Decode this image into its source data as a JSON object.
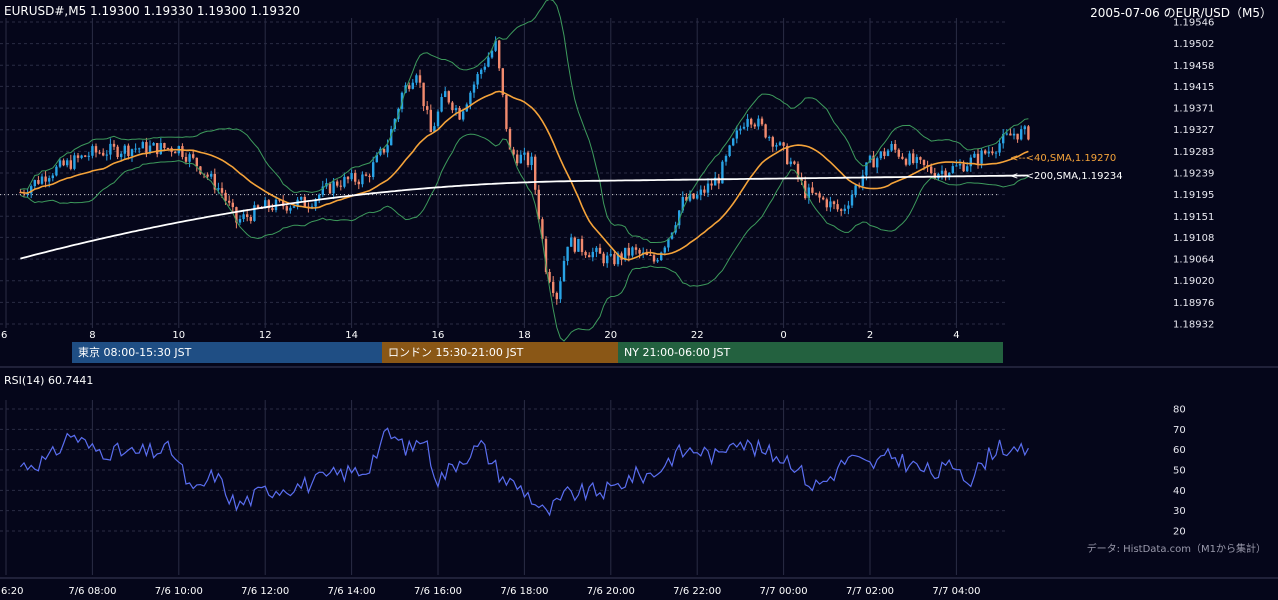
{
  "header": {
    "symbol_info": "EURUSD#,M5 1.19300 1.19330 1.19300 1.19320",
    "chart_title": "2005-07-06 のEUR/USD（M5）"
  },
  "sessions": [
    {
      "label": "東京 08:00-15:30 JST",
      "color": "#1f4e84"
    },
    {
      "label": "ロンドン 15:30-21:00 JST",
      "color": "#8a5716"
    },
    {
      "label": "NY 21:00-06:00 JST",
      "color": "#23613f"
    }
  ],
  "ma_labels": {
    "sma40": "<--<40,SMA,1.19270",
    "sma200": "<--<200,SMA,1.19234"
  },
  "rsi_title": "RSI(14) 60.7441",
  "source_note": "データ: HistData.com（M1から集計）",
  "colors": {
    "background": "#05061a",
    "candle_up": "#29a3e6",
    "candle_down": "#f28a6e",
    "sma40": "#f5a33a",
    "sma200": "#ffffff",
    "bollinger": "#3d9a5c",
    "rsi": "#5a6ef0",
    "grid": "#2a2c44"
  },
  "chart_data": [
    {
      "type": "candlestick",
      "ylim": [
        1.18932,
        1.19546
      ],
      "y_ticks": [
        "1.19546",
        "1.19502",
        "1.19458",
        "1.19415",
        "1.19371",
        "1.19327",
        "1.19283",
        "1.19239",
        "1.19195",
        "1.19151",
        "1.19108",
        "1.19064",
        "1.19020",
        "1.18976",
        "1.18932"
      ],
      "x_ticks_hours": [
        "6",
        "8",
        "10",
        "12",
        "14",
        "16",
        "18",
        "20",
        "22",
        "0",
        "2",
        "4"
      ],
      "reference_line": 1.19195,
      "sma40_last": 1.1927,
      "sma200_last": 1.19234,
      "anchors": [
        {
          "t": "06:20",
          "close": 1.192
        },
        {
          "t": "07:00",
          "close": 1.1924
        },
        {
          "t": "07:30",
          "close": 1.1926
        },
        {
          "t": "08:00",
          "close": 1.1928
        },
        {
          "t": "09:00",
          "close": 1.1929
        },
        {
          "t": "10:00",
          "close": 1.1929
        },
        {
          "t": "10:30",
          "close": 1.1925
        },
        {
          "t": "11:00",
          "close": 1.192
        },
        {
          "t": "11:20",
          "close": 1.1914
        },
        {
          "t": "12:00",
          "close": 1.1917
        },
        {
          "t": "13:00",
          "close": 1.1918
        },
        {
          "t": "13:40",
          "close": 1.1922
        },
        {
          "t": "14:20",
          "close": 1.1923
        },
        {
          "t": "14:50",
          "close": 1.193
        },
        {
          "t": "15:10",
          "close": 1.194
        },
        {
          "t": "15:30",
          "close": 1.1945
        },
        {
          "t": "15:50",
          "close": 1.1932
        },
        {
          "t": "16:10",
          "close": 1.194
        },
        {
          "t": "16:30",
          "close": 1.1936
        },
        {
          "t": "17:00",
          "close": 1.1945
        },
        {
          "t": "17:20",
          "close": 1.195
        },
        {
          "t": "17:40",
          "close": 1.1928
        },
        {
          "t": "18:10",
          "close": 1.1926
        },
        {
          "t": "18:30",
          "close": 1.1905
        },
        {
          "t": "18:45",
          "close": 1.1899
        },
        {
          "t": "19:00",
          "close": 1.191
        },
        {
          "t": "19:30",
          "close": 1.1908
        },
        {
          "t": "20:00",
          "close": 1.1906
        },
        {
          "t": "20:30",
          "close": 1.1908
        },
        {
          "t": "21:00",
          "close": 1.1906
        },
        {
          "t": "21:20",
          "close": 1.1911
        },
        {
          "t": "21:40",
          "close": 1.1918
        },
        {
          "t": "22:00",
          "close": 1.1919
        },
        {
          "t": "22:30",
          "close": 1.1923
        },
        {
          "t": "22:50",
          "close": 1.193
        },
        {
          "t": "23:10",
          "close": 1.1936
        },
        {
          "t": "23:30",
          "close": 1.1933
        },
        {
          "t": "23:50",
          "close": 1.193
        },
        {
          "t": "00:10",
          "close": 1.1926
        },
        {
          "t": "00:30",
          "close": 1.192
        },
        {
          "t": "01:00",
          "close": 1.1918
        },
        {
          "t": "01:20",
          "close": 1.1916
        },
        {
          "t": "01:40",
          "close": 1.1921
        },
        {
          "t": "02:00",
          "close": 1.1926
        },
        {
          "t": "02:30",
          "close": 1.1929
        },
        {
          "t": "03:00",
          "close": 1.1926
        },
        {
          "t": "03:30",
          "close": 1.1924
        },
        {
          "t": "04:00",
          "close": 1.1925
        },
        {
          "t": "04:30",
          "close": 1.1927
        },
        {
          "t": "05:00",
          "close": 1.193
        },
        {
          "t": "05:20",
          "close": 1.1932
        },
        {
          "t": "05:40",
          "close": 1.1932
        }
      ]
    },
    {
      "type": "line",
      "name": "RSI(14)",
      "ylim": [
        20,
        80
      ],
      "y_ticks": [
        "80",
        "70",
        "60",
        "50",
        "40",
        "30",
        "20"
      ],
      "last_value": 60.7441,
      "anchors": [
        {
          "t": "06:20",
          "value": 52
        },
        {
          "t": "07:00",
          "value": 55
        },
        {
          "t": "07:30",
          "value": 68
        },
        {
          "t": "08:00",
          "value": 60
        },
        {
          "t": "09:00",
          "value": 58
        },
        {
          "t": "09:50",
          "value": 60
        },
        {
          "t": "10:20",
          "value": 38
        },
        {
          "t": "10:50",
          "value": 48
        },
        {
          "t": "11:20",
          "value": 32
        },
        {
          "t": "12:00",
          "value": 40
        },
        {
          "t": "13:00",
          "value": 43
        },
        {
          "t": "13:40",
          "value": 48
        },
        {
          "t": "14:20",
          "value": 50
        },
        {
          "t": "14:50",
          "value": 68
        },
        {
          "t": "15:20",
          "value": 60
        },
        {
          "t": "15:40",
          "value": 66
        },
        {
          "t": "16:00",
          "value": 45
        },
        {
          "t": "16:30",
          "value": 55
        },
        {
          "t": "17:00",
          "value": 62
        },
        {
          "t": "17:30",
          "value": 46
        },
        {
          "t": "18:00",
          "value": 40
        },
        {
          "t": "18:30",
          "value": 28
        },
        {
          "t": "19:00",
          "value": 38
        },
        {
          "t": "19:30",
          "value": 39
        },
        {
          "t": "20:00",
          "value": 40
        },
        {
          "t": "20:30",
          "value": 47
        },
        {
          "t": "21:00",
          "value": 48
        },
        {
          "t": "21:30",
          "value": 58
        },
        {
          "t": "22:00",
          "value": 60
        },
        {
          "t": "22:30",
          "value": 56
        },
        {
          "t": "22:50",
          "value": 67
        },
        {
          "t": "23:10",
          "value": 62
        },
        {
          "t": "23:40",
          "value": 58
        },
        {
          "t": "00:10",
          "value": 55
        },
        {
          "t": "00:40",
          "value": 42
        },
        {
          "t": "01:00",
          "value": 45
        },
        {
          "t": "01:30",
          "value": 56
        },
        {
          "t": "02:00",
          "value": 52
        },
        {
          "t": "02:30",
          "value": 57
        },
        {
          "t": "03:00",
          "value": 52
        },
        {
          "t": "03:30",
          "value": 48
        },
        {
          "t": "04:00",
          "value": 53
        },
        {
          "t": "04:20",
          "value": 45
        },
        {
          "t": "04:40",
          "value": 55
        },
        {
          "t": "05:00",
          "value": 63
        },
        {
          "t": "05:20",
          "value": 57
        },
        {
          "t": "05:40",
          "value": 60.7441
        }
      ]
    }
  ],
  "time_axis_labels": [
    "6:20",
    "7/6 08:00",
    "7/6 10:00",
    "7/6 12:00",
    "7/6 14:00",
    "7/6 16:00",
    "7/6 18:00",
    "7/6 20:00",
    "7/6 22:00",
    "7/7 00:00",
    "7/7 02:00",
    "7/7 04:00"
  ]
}
